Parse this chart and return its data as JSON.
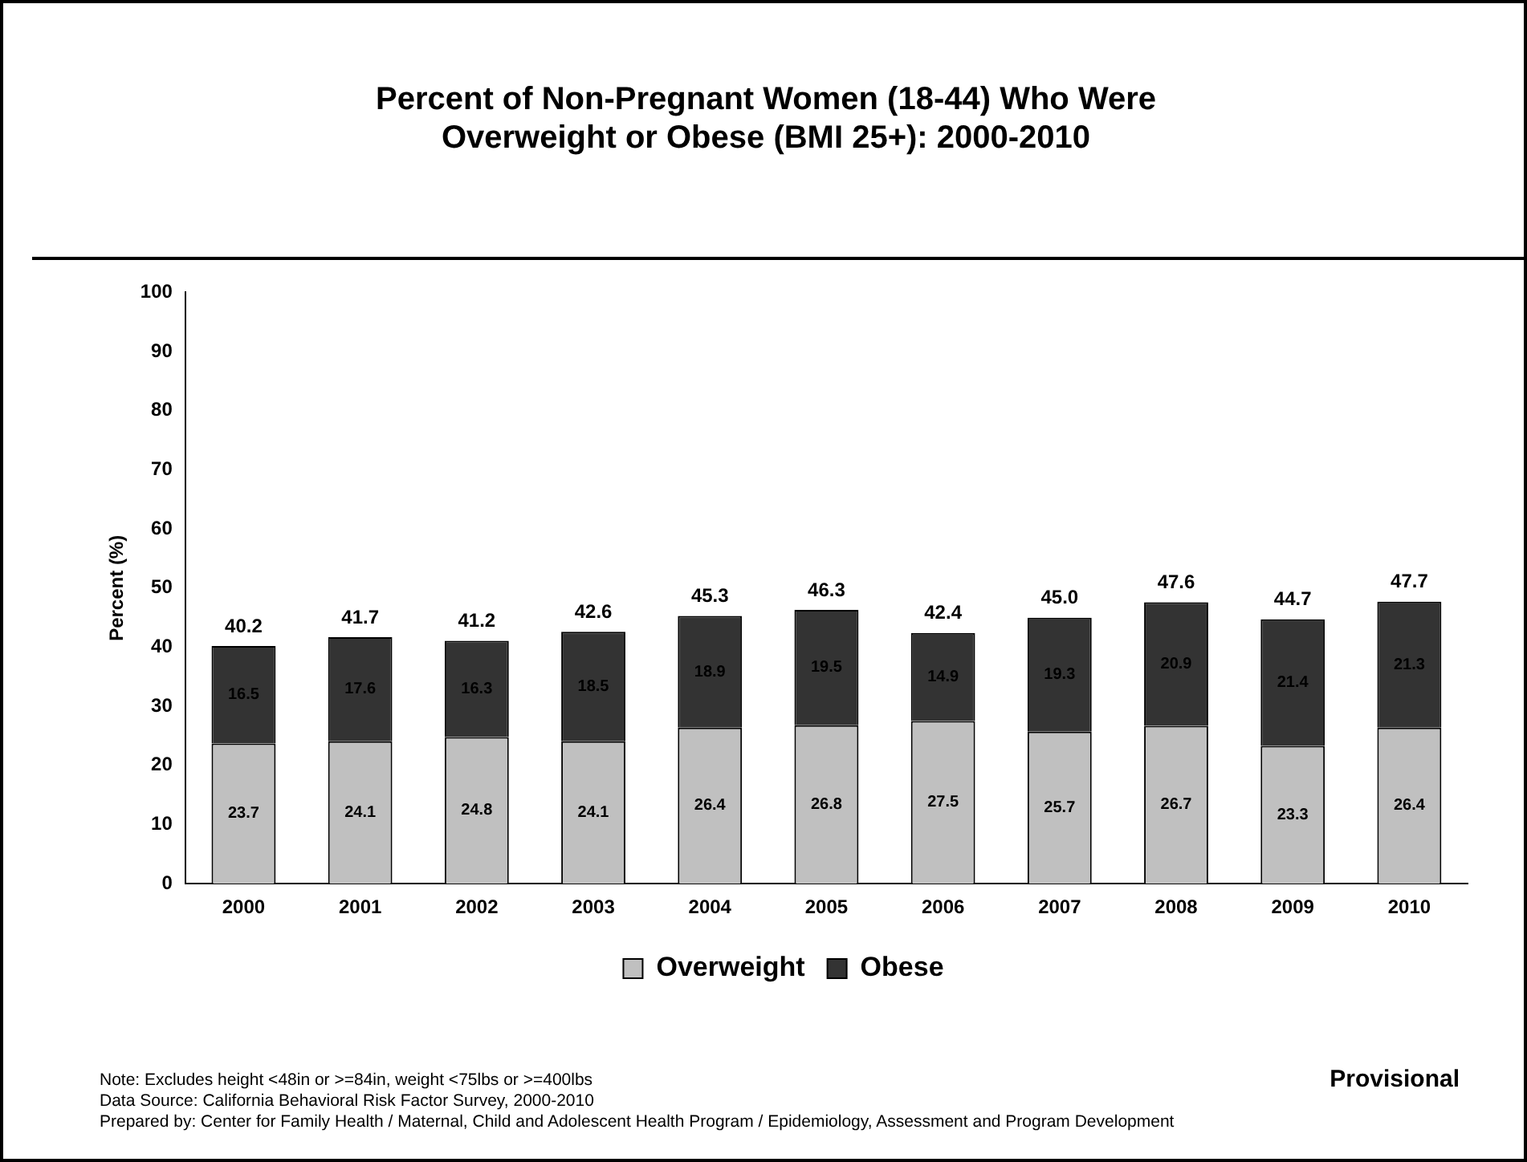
{
  "chart_data": {
    "type": "bar",
    "title": "Percent of Non-Pregnant Women (18-44) Who Were\nOverweight or Obese (BMI 25+): 2000-2010",
    "ylabel": "Percent (%)",
    "categories": [
      "2000",
      "2001",
      "2002",
      "2003",
      "2004",
      "2005",
      "2006",
      "2007",
      "2008",
      "2009",
      "2010"
    ],
    "series": [
      {
        "name": "Overweight",
        "color": "#c0c0c0",
        "values": [
          23.7,
          24.1,
          24.8,
          24.1,
          26.4,
          26.8,
          27.5,
          25.7,
          26.7,
          23.3,
          26.4
        ]
      },
      {
        "name": "Obese",
        "color": "#333333",
        "values": [
          16.5,
          17.6,
          16.3,
          18.5,
          18.9,
          19.5,
          14.9,
          19.3,
          20.9,
          21.4,
          21.3
        ]
      }
    ],
    "stacked": true,
    "data_labels": true,
    "totals": [
      "40.2",
      "41.7",
      "41.2",
      "42.6",
      "45.3",
      "46.3",
      "42.4",
      "45.0",
      "47.6",
      "44.7",
      "47.7"
    ],
    "ylim": [
      0,
      100
    ],
    "yticks": [
      0,
      10,
      20,
      30,
      40,
      50,
      60,
      70,
      80,
      90,
      100
    ],
    "grid": false,
    "legend": "bottom",
    "annotations": [
      "Provisional",
      "Note: Excludes height <48in or >=84in, weight <75lbs or >=400lbs",
      "Data Source: California Behavioral Risk Factor Survey, 2000-2010",
      "Prepared by: Center for Family Health / Maternal, Child and Adolescent Health Program / Epidemiology, Assessment and Program Development"
    ]
  }
}
